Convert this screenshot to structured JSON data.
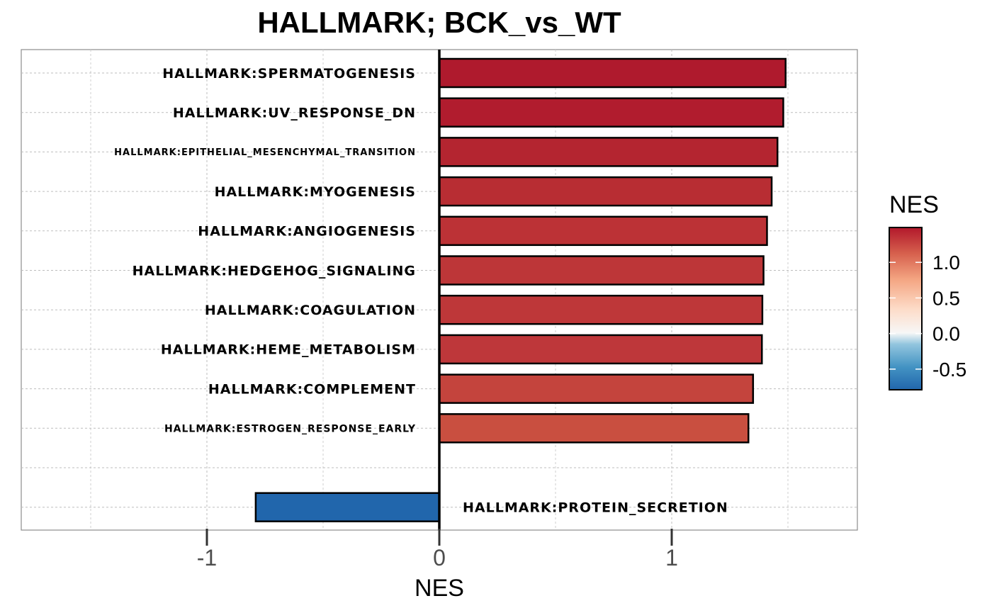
{
  "chart_data": {
    "type": "bar",
    "orientation": "horizontal",
    "title": "HALLMARK; BCK_vs_WT",
    "xlabel": "NES",
    "ylabel": "",
    "xlim": [
      -1.8,
      1.8
    ],
    "x_ticks": [
      -1,
      0,
      1
    ],
    "x_tick_labels": [
      "-1",
      "0",
      "1"
    ],
    "grid": true,
    "categories": [
      "HALLMARK:SPERMATOGENESIS",
      "HALLMARK:UV_RESPONSE_DN",
      "HALLMARK:EPITHELIAL_MESENCHYMAL_TRANSITION",
      "HALLMARK:MYOGENESIS",
      "HALLMARK:ANGIOGENESIS",
      "HALLMARK:HEDGEHOG_SIGNALING",
      "HALLMARK:COAGULATION",
      "HALLMARK:HEME_METABOLISM",
      "HALLMARK:COMPLEMENT",
      "HALLMARK:ESTROGEN_RESPONSE_EARLY",
      "",
      "HALLMARK:PROTEIN_SECRETION"
    ],
    "values": [
      1.49,
      1.48,
      1.455,
      1.43,
      1.41,
      1.395,
      1.39,
      1.388,
      1.35,
      1.33,
      null,
      -0.79
    ],
    "bar_colors": [
      "#AF1A2D",
      "#B11C2E",
      "#B42530",
      "#B82D33",
      "#BC3236",
      "#BD3638",
      "#BE3739",
      "#BE373A",
      "#C4443D",
      "#C94F40",
      null,
      "#2166AC"
    ],
    "legend": {
      "title": "NES",
      "position": "right",
      "ticks": [
        "1.0",
        "0.5",
        "0.0",
        "-0.5"
      ],
      "tick_values": [
        1.0,
        0.5,
        0.0,
        -0.5
      ],
      "range": [
        -0.79,
        1.49
      ],
      "colors": [
        "#2166AC",
        "#F7F7F7",
        "#B2182B"
      ]
    }
  }
}
